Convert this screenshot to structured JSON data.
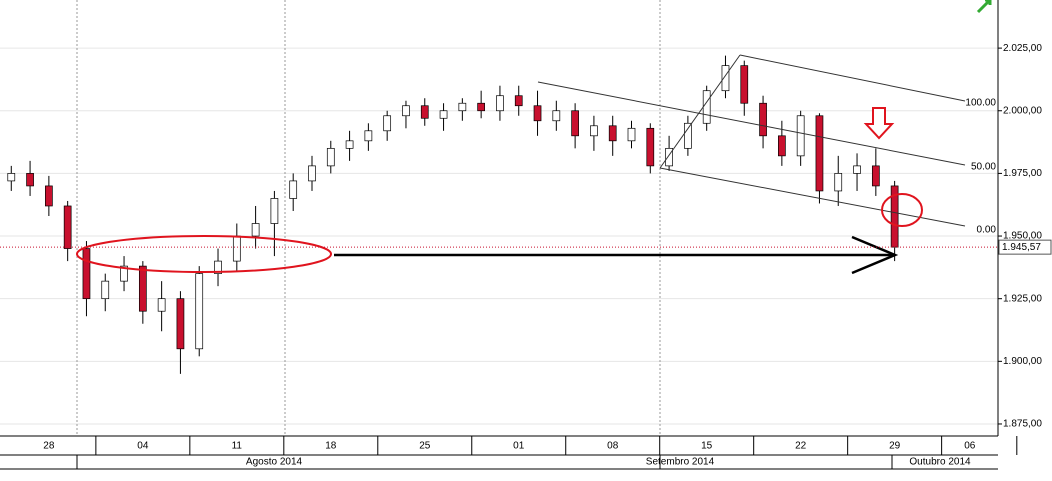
{
  "chart_data": {
    "type": "candlestick",
    "candles": {
      "x": [
        -2,
        -1,
        0,
        1,
        2,
        3,
        4,
        5,
        6,
        7,
        8,
        9,
        10,
        11,
        12,
        13,
        14,
        15,
        16,
        17,
        18,
        19,
        20,
        21,
        22,
        23,
        24,
        25,
        26,
        27,
        28,
        29,
        30,
        31,
        32,
        33,
        34,
        35,
        36,
        37,
        38,
        39,
        40,
        41,
        42,
        43,
        44,
        45
      ],
      "open": [
        1972,
        1975,
        1970,
        1962,
        1945,
        1925,
        1932,
        1938,
        1920,
        1925,
        1905,
        1935,
        1940,
        1950,
        1955,
        1965,
        1972,
        1978,
        1985,
        1988,
        1992,
        1998,
        2002,
        1997,
        2000,
        2003,
        2000,
        2006,
        2002,
        1996,
        2000,
        1990,
        1994,
        1988,
        1993,
        1978,
        1985,
        1995,
        2008,
        2018,
        2003,
        1990,
        1982,
        1998,
        1968,
        1975,
        1978,
        1970
      ],
      "high": [
        1978,
        1980,
        1974,
        1964,
        1948,
        1935,
        1942,
        1940,
        1932,
        1928,
        1938,
        1945,
        1955,
        1962,
        1968,
        1975,
        1982,
        1988,
        1992,
        1995,
        2000,
        2004,
        2005,
        2003,
        2005,
        2008,
        2010,
        2010,
        2008,
        2004,
        2003,
        1998,
        1998,
        1996,
        1995,
        1990,
        1998,
        2010,
        2022,
        2020,
        2006,
        1996,
        2000,
        1999,
        1982,
        1983,
        1985,
        1972
      ],
      "low": [
        1968,
        1966,
        1958,
        1940,
        1918,
        1920,
        1928,
        1915,
        1912,
        1895,
        1902,
        1930,
        1936,
        1945,
        1942,
        1960,
        1968,
        1975,
        1980,
        1984,
        1988,
        1993,
        1994,
        1992,
        1996,
        1997,
        1996,
        1998,
        1990,
        1992,
        1985,
        1984,
        1982,
        1985,
        1975,
        1976,
        1982,
        1992,
        2005,
        1998,
        1985,
        1978,
        1978,
        1963,
        1962,
        1968,
        1966,
        1940
      ],
      "close": [
        1975,
        1970,
        1962,
        1945,
        1925,
        1932,
        1938,
        1920,
        1925,
        1905,
        1935,
        1940,
        1950,
        1955,
        1965,
        1972,
        1978,
        1985,
        1988,
        1992,
        1998,
        2002,
        1997,
        2000,
        2003,
        2000,
        2006,
        2002,
        1996,
        2000,
        1990,
        1994,
        1988,
        1993,
        1978,
        1985,
        1995,
        2008,
        2018,
        2003,
        1990,
        1982,
        1998,
        1968,
        1975,
        1978,
        1970,
        1945.57
      ]
    },
    "up_color": "#ffffff",
    "down_color": "#c8102e",
    "xlim": [
      -2.6,
      50.5
    ],
    "ylim": [
      1870.2,
      2044.2
    ],
    "xticks": [
      {
        "value": 0,
        "label": "28"
      },
      {
        "value": 5,
        "label": "04"
      },
      {
        "value": 10,
        "label": "11"
      },
      {
        "value": 15,
        "label": "18"
      },
      {
        "value": 20,
        "label": "25"
      },
      {
        "value": 25,
        "label": "01"
      },
      {
        "value": 30,
        "label": "08"
      },
      {
        "value": 35,
        "label": "15"
      },
      {
        "value": 40,
        "label": "22"
      },
      {
        "value": 45,
        "label": "29"
      },
      {
        "value": 49,
        "label": "06"
      }
    ],
    "yticks": [
      {
        "value": 1875,
        "label": "1.875,00"
      },
      {
        "value": 1900,
        "label": "1.900,00"
      },
      {
        "value": 1925,
        "label": "1.925,00"
      },
      {
        "value": 1950,
        "label": "1.950,00"
      },
      {
        "value": 1975,
        "label": "1.975,00"
      },
      {
        "value": 2000,
        "label": "2.000,00"
      },
      {
        "value": 2025,
        "label": "2.025,00"
      }
    ],
    "months": [
      "Agosto 2014",
      "Setembro 2014",
      "Outubro 2014"
    ],
    "channel_labels": [
      "100.00",
      "50.00",
      "0.00"
    ],
    "last_price": {
      "value": 1945.57,
      "label": "1.945,57"
    },
    "grid": true
  }
}
